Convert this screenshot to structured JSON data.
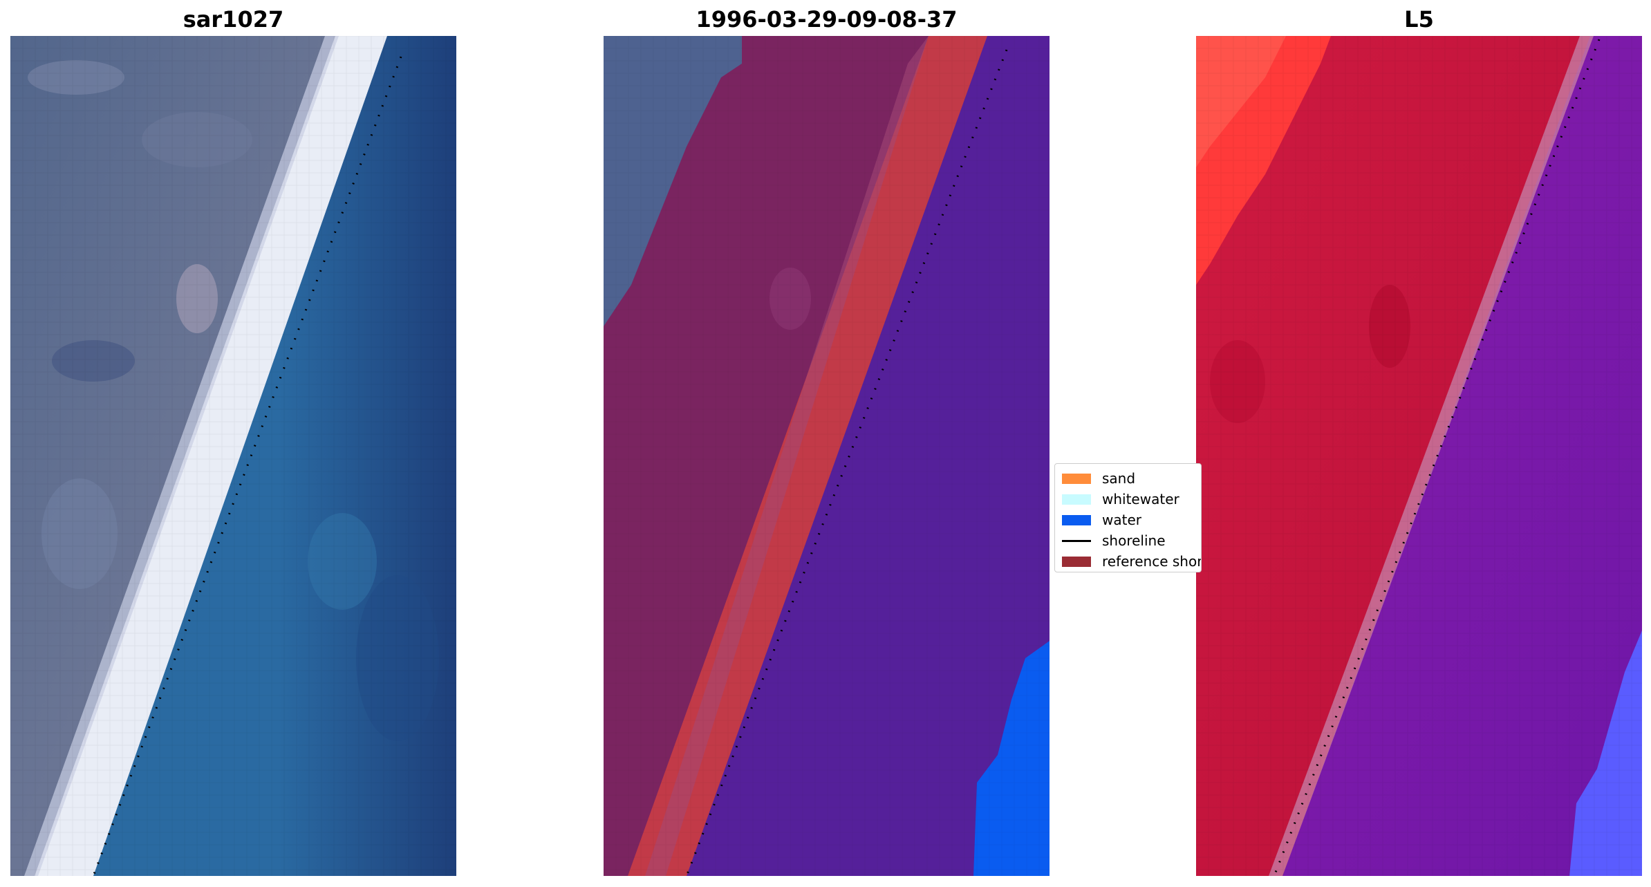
{
  "panels": [
    {
      "title": "sar1027",
      "kind": "rgb"
    },
    {
      "title": "1996-03-29-09-08-37",
      "kind": "classified"
    },
    {
      "title": "L5",
      "kind": "index"
    }
  ],
  "legend": {
    "items": [
      {
        "label": "sand",
        "color": "#ff8c3a",
        "type": "patch"
      },
      {
        "label": "whitewater",
        "color": "#c8fbff",
        "type": "patch"
      },
      {
        "label": "water",
        "color": "#0a5cf0",
        "type": "patch"
      },
      {
        "label": "shoreline",
        "color": "#000000",
        "type": "line"
      },
      {
        "label": "reference shoreline",
        "color": "#9a2c34",
        "type": "patch"
      }
    ]
  },
  "colors": {
    "land_overlay": "#7a2460",
    "sand_overlay": "#c23a48",
    "water_overlay": "#55209a",
    "water_edge": "#0a5cf0",
    "index_high": "#ff2a2a",
    "index_mid": "#c4133c",
    "index_low": "#7a18a8",
    "index_outer": "#5a5cff",
    "rgb_land": "#5a6a8c",
    "rgb_water": "#245a94",
    "rgb_surf": "#e8ecf5"
  }
}
